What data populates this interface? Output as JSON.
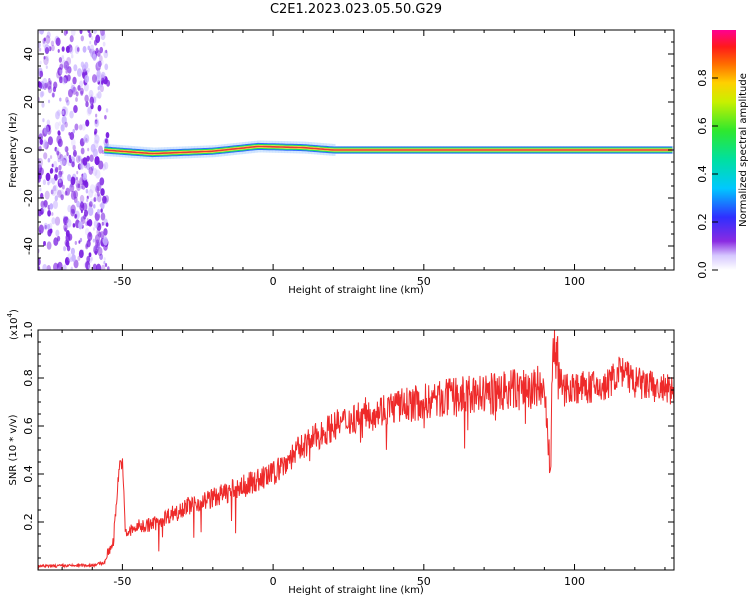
{
  "title": "C2E1.2023.023.05.50.G29",
  "colors": {
    "snr_line": "#ee2a2a",
    "spectrogram_dots": "#7a1fe0",
    "band_core": "#e33a3a",
    "band_outer": "#1ee05a",
    "band_edge": "#2f6bff"
  },
  "chart_data": [
    {
      "type": "heatmap",
      "xlabel": "Height of straight line (km)",
      "ylabel": "Frequency (Hz)",
      "xlim": [
        -78,
        133
      ],
      "ylim": [
        -50,
        50
      ],
      "x_ticks": [
        "-50",
        "0",
        "50",
        "100"
      ],
      "x_tick_values": [
        -50,
        0,
        50,
        100
      ],
      "y_ticks": [
        "40",
        "20",
        "0",
        "-20",
        "-40"
      ],
      "y_tick_values": [
        40,
        20,
        0,
        -20,
        -40
      ],
      "colorbar": {
        "label": "Normalized spectral amplitude",
        "range": [
          0,
          1
        ],
        "ticks": [
          "0.0",
          "0.2",
          "0.4",
          "0.6",
          "0.8"
        ],
        "tick_values": [
          0.0,
          0.2,
          0.4,
          0.6,
          0.8
        ],
        "colormap": "rainbow (violet-blue-cyan-green-yellow-red-magenta)"
      },
      "noise_region_x": [
        -78,
        -56
      ],
      "signal_band": {
        "x_range": [
          -56,
          133
        ],
        "frequency_center": [
          {
            "x": -56,
            "f": 0.0
          },
          {
            "x": -40,
            "f": -1.5
          },
          {
            "x": -20,
            "f": -0.5
          },
          {
            "x": -5,
            "f": 1.5
          },
          {
            "x": 10,
            "f": 1.0
          },
          {
            "x": 20,
            "f": 0.0
          },
          {
            "x": 133,
            "f": 0.0
          }
        ]
      }
    },
    {
      "type": "line",
      "xlabel": "Height of straight line (km)",
      "ylabel": "SNR (10 * v/v)",
      "y_multiplier": "(x10",
      "y_multiplier_exp": "4",
      "y_multiplier_close": ")",
      "xlim": [
        -78,
        133
      ],
      "ylim": [
        0,
        10000
      ],
      "x_ticks": [
        "-50",
        "0",
        "50",
        "100"
      ],
      "x_tick_values": [
        -50,
        0,
        50,
        100
      ],
      "y_ticks": [
        "0.2",
        "0.4",
        "0.6",
        "0.8",
        "1.0"
      ],
      "y_tick_values": [
        2000,
        4000,
        6000,
        8000,
        10000
      ],
      "series": [
        {
          "values_xy": [
            [
              -78,
              150
            ],
            [
              -60,
              200
            ],
            [
              -56,
              300
            ],
            [
              -53,
              1200
            ],
            [
              -51,
              4400
            ],
            [
              -50,
              4500
            ],
            [
              -49,
              1500
            ],
            [
              -45,
              1800
            ],
            [
              -40,
              1900
            ],
            [
              -30,
              2600
            ],
            [
              -20,
              3000
            ],
            [
              -10,
              3500
            ],
            [
              0,
              4000
            ],
            [
              10,
              5200
            ],
            [
              20,
              6000
            ],
            [
              30,
              6500
            ],
            [
              40,
              6800
            ],
            [
              50,
              7000
            ],
            [
              60,
              7200
            ],
            [
              70,
              7300
            ],
            [
              80,
              7500
            ],
            [
              90,
              7600
            ],
            [
              92,
              3600
            ],
            [
              93,
              10000
            ],
            [
              95,
              7700
            ],
            [
              100,
              7600
            ],
            [
              110,
              7600
            ],
            [
              115,
              8300
            ],
            [
              120,
              7800
            ],
            [
              133,
              7400
            ]
          ]
        }
      ]
    }
  ]
}
